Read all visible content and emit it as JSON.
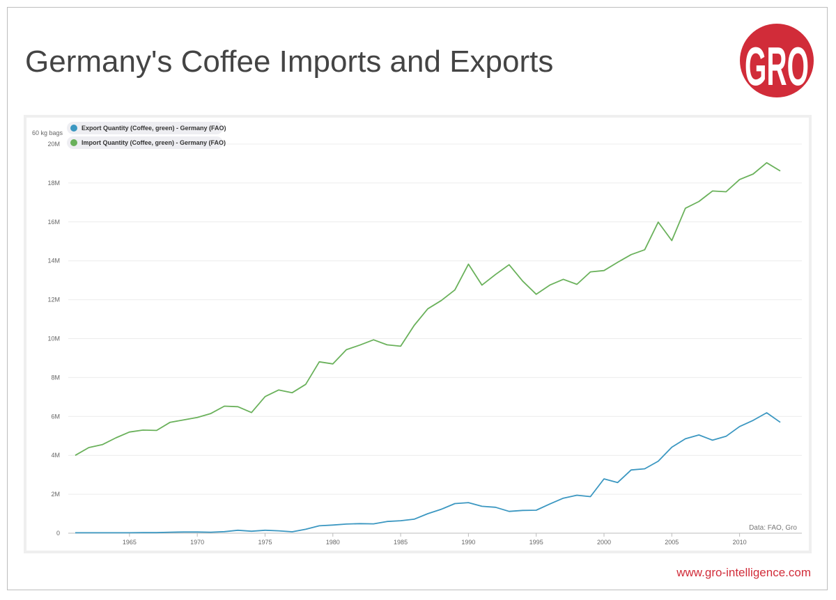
{
  "title": "Germany's Coffee Imports and Exports",
  "logo_text": "GRO",
  "footer_url": "www.gro-intelligence.com",
  "colors": {
    "export": "#3b97c1",
    "import": "#6ab15b",
    "brand": "#d12c39"
  },
  "chart_data": {
    "type": "line",
    "ylabel": "60 kg bags",
    "source_note": "Data: FAO, Gro",
    "ylim": [
      0,
      20000000
    ],
    "xlim": [
      1961,
      2013
    ],
    "y_ticks": [
      0,
      2000000,
      4000000,
      6000000,
      8000000,
      10000000,
      12000000,
      14000000,
      16000000,
      18000000,
      20000000
    ],
    "y_tick_labels": [
      "0",
      "2M",
      "4M",
      "6M",
      "8M",
      "10M",
      "12M",
      "14M",
      "16M",
      "18M",
      "20M"
    ],
    "x_ticks": [
      1965,
      1970,
      1975,
      1980,
      1985,
      1990,
      1995,
      2000,
      2005,
      2010
    ],
    "x_tick_labels": [
      "1965",
      "1970",
      "1975",
      "1980",
      "1985",
      "1990",
      "1995",
      "2000",
      "2005",
      "2010"
    ],
    "legend": {
      "placement": "top-left"
    },
    "x": [
      1961,
      1962,
      1963,
      1964,
      1965,
      1966,
      1967,
      1968,
      1969,
      1970,
      1971,
      1972,
      1973,
      1974,
      1975,
      1976,
      1977,
      1978,
      1979,
      1980,
      1981,
      1982,
      1983,
      1984,
      1985,
      1986,
      1987,
      1988,
      1989,
      1990,
      1991,
      1992,
      1993,
      1994,
      1995,
      1996,
      1997,
      1998,
      1999,
      2000,
      2001,
      2002,
      2003,
      2004,
      2005,
      2006,
      2007,
      2008,
      2009,
      2010,
      2011,
      2012,
      2013
    ],
    "series": [
      {
        "name": "Export Quantity (Coffee, green) - Germany (FAO)",
        "color": "#3b97c1",
        "values": [
          20000,
          20000,
          20000,
          20000,
          20000,
          30000,
          30000,
          50000,
          60000,
          60000,
          50000,
          80000,
          150000,
          100000,
          150000,
          120000,
          70000,
          200000,
          380000,
          420000,
          470000,
          490000,
          480000,
          600000,
          640000,
          720000,
          1000000,
          1230000,
          1520000,
          1570000,
          1380000,
          1330000,
          1120000,
          1170000,
          1180000,
          1500000,
          1800000,
          1950000,
          1880000,
          2790000,
          2600000,
          3250000,
          3310000,
          3700000,
          4420000,
          4850000,
          5050000,
          4780000,
          4980000,
          5480000,
          5800000,
          6190000,
          5700000
        ]
      },
      {
        "name": "Import Quantity (Coffee, green) - Germany (FAO)",
        "color": "#6ab15b",
        "values": [
          4000000,
          4400000,
          4550000,
          4900000,
          5200000,
          5300000,
          5280000,
          5700000,
          5820000,
          5950000,
          6150000,
          6530000,
          6500000,
          6200000,
          7020000,
          7360000,
          7220000,
          7650000,
          8810000,
          8700000,
          9430000,
          9670000,
          9940000,
          9680000,
          9610000,
          10680000,
          11530000,
          11960000,
          12500000,
          13830000,
          12750000,
          13300000,
          13800000,
          12960000,
          12280000,
          12750000,
          13050000,
          12790000,
          13430000,
          13500000,
          13920000,
          14320000,
          14570000,
          15990000,
          15040000,
          16700000,
          17050000,
          17590000,
          17550000,
          18180000,
          18460000,
          19040000,
          18620000
        ]
      }
    ]
  }
}
